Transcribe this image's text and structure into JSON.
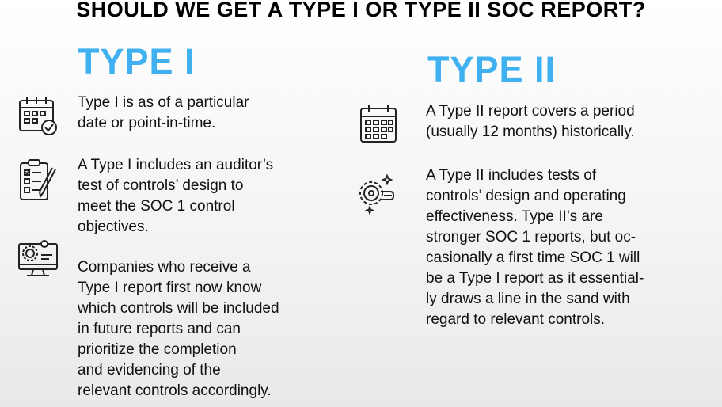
{
  "title": "SHOULD WE GET A TYPE I OR TYPE II SOC REPORT?",
  "type1": {
    "heading": "TYPE I",
    "items": [
      {
        "icon": "calendar-check-icon",
        "lines": [
          "Type I is as of a particular",
          "date or point-in-time."
        ]
      },
      {
        "icon": "clipboard-checklist-icon",
        "lines": [
          "A Type I includes an auditor’s",
          "test of controls’ design to",
          "meet the SOC 1 control",
          "objectives."
        ]
      },
      {
        "icon": "monitor-gear-icon",
        "lines": [
          "Companies who receive a",
          "Type I report first now know",
          "which controls will be included",
          "in future reports and can",
          "prioritize the completion",
          "and evidencing of the",
          "relevant controls accordingly."
        ]
      }
    ]
  },
  "type2": {
    "heading": "TYPE II",
    "items": [
      {
        "icon": "calendar-icon",
        "lines": [
          "A Type II report covers a period",
          "(usually 12 months) historically."
        ]
      },
      {
        "icon": "gear-hand-icon",
        "lines": [
          "A Type II includes tests of",
          "controls’ design and operating",
          "effectiveness. Type II’s are",
          "stronger SOC 1 reports, but oc-",
          "casionally a first time SOC 1 will",
          "be a Type I report as it essential-",
          "ly draws a line in the sand with",
          "regard to relevant controls."
        ]
      }
    ]
  },
  "colors": {
    "heading": "#3fb0f0",
    "text": "#111111",
    "icon_stroke": "#222222"
  }
}
